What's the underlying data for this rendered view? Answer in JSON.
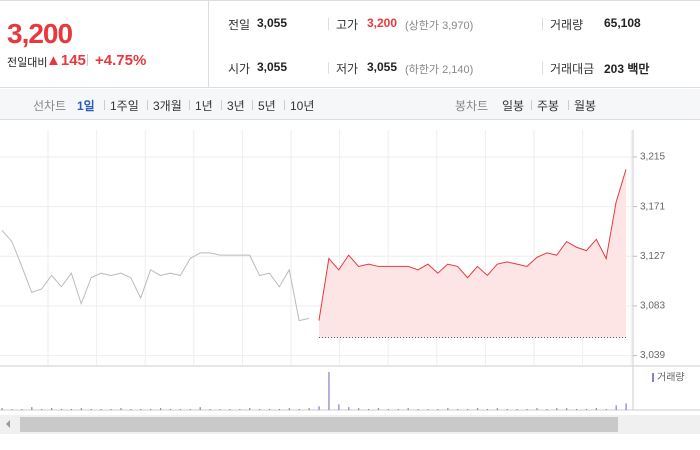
{
  "header": {
    "price": "3,200",
    "change_label": "전일대비",
    "change": "▲145",
    "change_rate": "+4.75%",
    "stats": [
      {
        "label": "전일",
        "value": "3,055"
      },
      {
        "label": "고가",
        "value": "3,200",
        "note": "(상한가 3,970)"
      },
      {
        "label": "거래량",
        "value": "65,108"
      },
      {
        "label": "시가",
        "value": "3,055"
      },
      {
        "label": "저가",
        "value": "3,055",
        "note": "(하한가 2,140)"
      },
      {
        "label": "거래대금",
        "value": "203 백만"
      }
    ]
  },
  "tabs": {
    "line_label": "선차트",
    "line": [
      "1일",
      "1주일",
      "3개월",
      "1년",
      "3년",
      "5년",
      "10년"
    ],
    "candle_label": "봉차트",
    "candle": [
      "일봉",
      "주봉",
      "월봉"
    ]
  },
  "chart_data": {
    "type": "line",
    "ylim": [
      3028,
      3238
    ],
    "yticks": [
      {
        "value": 3215,
        "label": "3,215"
      },
      {
        "value": 3171,
        "label": "3,171"
      },
      {
        "value": 3127,
        "label": "3,127"
      },
      {
        "value": 3083,
        "label": "3,083"
      },
      {
        "value": 3039,
        "label": "3,039"
      }
    ],
    "grid": true,
    "baseline": 3055,
    "series": [
      {
        "color": "#bbbbbb",
        "values": [
          3150,
          3140,
          3118,
          3095,
          3098,
          3110,
          3100,
          3112,
          3085,
          3108,
          3112,
          3110,
          3112,
          3108,
          3090,
          3115,
          3110,
          3112,
          3110,
          3125,
          3130,
          3130,
          3128,
          3128,
          3128,
          3128,
          3110,
          3112,
          3100,
          3115,
          3070,
          3072,
          null,
          null,
          null,
          null,
          null,
          null,
          null,
          null,
          null,
          null,
          null,
          null,
          null,
          null,
          null,
          null,
          null,
          null,
          null,
          null,
          null,
          null,
          null,
          null,
          null,
          null,
          null,
          null,
          null,
          null,
          null,
          null
        ]
      },
      {
        "color": "#e8383d",
        "fill": "#fde5e6",
        "values": [
          null,
          null,
          null,
          null,
          null,
          null,
          null,
          null,
          null,
          null,
          null,
          null,
          null,
          null,
          null,
          null,
          null,
          null,
          null,
          null,
          null,
          null,
          null,
          null,
          null,
          null,
          null,
          null,
          null,
          null,
          null,
          null,
          3070,
          3125,
          3115,
          3128,
          3118,
          3120,
          3118,
          3118,
          3118,
          3118,
          3115,
          3120,
          3112,
          3120,
          3118,
          3108,
          3118,
          3110,
          3120,
          3122,
          3120,
          3118,
          3126,
          3130,
          3128,
          3140,
          3135,
          3132,
          3142,
          3125,
          3175,
          3204
        ]
      }
    ],
    "volume": {
      "name": "거래량",
      "color": "#8a7fc0",
      "values": [
        2,
        1,
        1,
        3,
        1,
        2,
        1,
        1,
        2,
        1,
        1,
        1,
        2,
        1,
        1,
        1,
        2,
        1,
        1,
        1,
        3,
        1,
        1,
        1,
        1,
        2,
        1,
        1,
        1,
        2,
        1,
        2,
        4,
        40,
        6,
        3,
        2,
        1,
        2,
        1,
        1,
        2,
        1,
        1,
        1,
        2,
        1,
        1,
        2,
        1,
        2,
        1,
        1,
        1,
        2,
        1,
        2,
        2,
        1,
        1,
        2,
        1,
        5,
        7
      ]
    }
  }
}
